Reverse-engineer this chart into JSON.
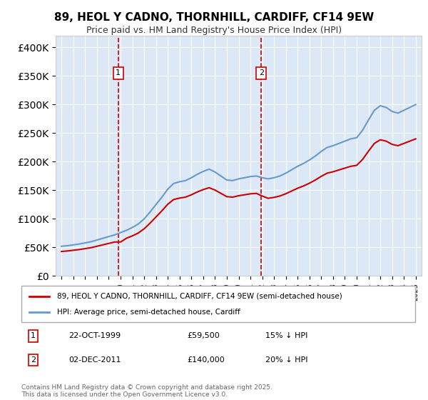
{
  "title": "89, HEOL Y CADNO, THORNHILL, CARDIFF, CF14 9EW",
  "subtitle": "Price paid vs. HM Land Registry's House Price Index (HPI)",
  "legend_label_red": "89, HEOL Y CADNO, THORNHILL, CARDIFF, CF14 9EW (semi-detached house)",
  "legend_label_blue": "HPI: Average price, semi-detached house, Cardiff",
  "purchase1_date": "22-OCT-1999",
  "purchase1_price": 59500,
  "purchase1_note": "15% ↓ HPI",
  "purchase2_date": "02-DEC-2011",
  "purchase2_price": 140000,
  "purchase2_note": "20% ↓ HPI",
  "purchase1_year": 1999.8,
  "purchase2_year": 2011.92,
  "footer": "Contains HM Land Registry data © Crown copyright and database right 2025.\nThis data is licensed under the Open Government Licence v3.0.",
  "background_color": "#e8f0f8",
  "plot_bg_color": "#dce8f5",
  "red_color": "#cc0000",
  "blue_color": "#6699cc",
  "ylim": [
    0,
    420000
  ],
  "xlim": [
    1994.5,
    2025.5
  ]
}
